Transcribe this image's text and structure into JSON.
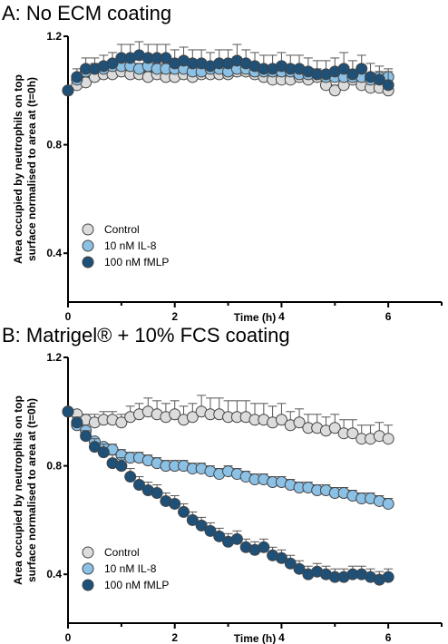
{
  "chart_data": [
    {
      "type": "scatter",
      "panel_title": "A: No ECM coating",
      "xlabel": "Time (h)",
      "ylabel_lines": [
        "Area occupied by neutrophils on top",
        "surface normalised to area at (t=0h)"
      ],
      "xlim": [
        0,
        7
      ],
      "ylim": [
        0.22,
        1.2
      ],
      "xticks": [
        0,
        2,
        4,
        6
      ],
      "yticks": [
        0.4,
        0.8,
        1.2
      ],
      "grid": false,
      "error_bars": true,
      "legend": {
        "placement": "bottom-left"
      },
      "x": [
        0,
        0.167,
        0.333,
        0.5,
        0.667,
        0.833,
        1.0,
        1.167,
        1.333,
        1.5,
        1.667,
        1.833,
        2.0,
        2.167,
        2.333,
        2.5,
        2.667,
        2.833,
        3.0,
        3.167,
        3.333,
        3.5,
        3.667,
        3.833,
        4.0,
        4.167,
        4.333,
        4.5,
        4.667,
        4.833,
        5.0,
        5.167,
        5.333,
        5.5,
        5.667,
        5.833,
        6.0
      ],
      "series": [
        {
          "name": "Control",
          "color": "#dcdcdc",
          "values": [
            1.0,
            1.02,
            1.03,
            1.05,
            1.06,
            1.06,
            1.07,
            1.06,
            1.06,
            1.05,
            1.06,
            1.05,
            1.05,
            1.06,
            1.05,
            1.06,
            1.06,
            1.06,
            1.06,
            1.07,
            1.07,
            1.06,
            1.05,
            1.04,
            1.04,
            1.04,
            1.05,
            1.04,
            1.05,
            1.02,
            1.0,
            1.02,
            1.04,
            1.02,
            1.01,
            1.01,
            1.0
          ],
          "errors": [
            0.0,
            0.015,
            0.02,
            0.02,
            0.02,
            0.02,
            0.02,
            0.02,
            0.02,
            0.02,
            0.02,
            0.02,
            0.02,
            0.02,
            0.02,
            0.02,
            0.02,
            0.02,
            0.02,
            0.02,
            0.02,
            0.02,
            0.02,
            0.02,
            0.02,
            0.02,
            0.02,
            0.02,
            0.02,
            0.02,
            0.02,
            0.02,
            0.02,
            0.02,
            0.02,
            0.02,
            0.02
          ]
        },
        {
          "name": "10 nM IL-8",
          "color": "#8cc1e6",
          "values": [
            1.0,
            1.04,
            1.07,
            1.08,
            1.08,
            1.09,
            1.09,
            1.09,
            1.08,
            1.09,
            1.08,
            1.08,
            1.08,
            1.08,
            1.07,
            1.07,
            1.08,
            1.08,
            1.07,
            1.08,
            1.08,
            1.07,
            1.07,
            1.07,
            1.07,
            1.07,
            1.06,
            1.06,
            1.06,
            1.05,
            1.05,
            1.05,
            1.05,
            1.05,
            1.04,
            1.05,
            1.05
          ],
          "errors": [
            0.0,
            0.02,
            0.02,
            0.02,
            0.02,
            0.02,
            0.02,
            0.02,
            0.02,
            0.02,
            0.02,
            0.02,
            0.02,
            0.02,
            0.02,
            0.02,
            0.02,
            0.02,
            0.02,
            0.02,
            0.02,
            0.02,
            0.02,
            0.02,
            0.02,
            0.02,
            0.02,
            0.02,
            0.02,
            0.02,
            0.02,
            0.02,
            0.02,
            0.02,
            0.02,
            0.02,
            0.03
          ]
        },
        {
          "name": "100 nM fMLP",
          "color": "#1e5078",
          "values": [
            1.0,
            1.05,
            1.08,
            1.08,
            1.09,
            1.1,
            1.12,
            1.12,
            1.13,
            1.12,
            1.12,
            1.12,
            1.1,
            1.11,
            1.1,
            1.1,
            1.09,
            1.1,
            1.1,
            1.11,
            1.1,
            1.09,
            1.08,
            1.08,
            1.09,
            1.08,
            1.08,
            1.07,
            1.06,
            1.06,
            1.07,
            1.08,
            1.06,
            1.08,
            1.05,
            1.04,
            1.02
          ],
          "errors": [
            0.0,
            0.03,
            0.04,
            0.04,
            0.04,
            0.04,
            0.05,
            0.05,
            0.05,
            0.05,
            0.05,
            0.05,
            0.05,
            0.05,
            0.05,
            0.05,
            0.05,
            0.05,
            0.05,
            0.06,
            0.05,
            0.05,
            0.05,
            0.05,
            0.05,
            0.05,
            0.05,
            0.05,
            0.05,
            0.05,
            0.05,
            0.06,
            0.05,
            0.05,
            0.05,
            0.05,
            0.05
          ]
        }
      ]
    },
    {
      "type": "scatter",
      "panel_title": "B: Matrigel® + 10% FCS coating",
      "xlabel": "Time (h)",
      "ylabel_lines": [
        "Area occupied by neutrophils on top",
        "surface normalised to area at (t=0h)"
      ],
      "xlim": [
        0,
        7
      ],
      "ylim": [
        0.22,
        1.2
      ],
      "xticks": [
        0,
        2,
        4,
        6
      ],
      "yticks": [
        0.4,
        0.8,
        1.2
      ],
      "grid": false,
      "error_bars": true,
      "legend": {
        "placement": "bottom-left"
      },
      "x": [
        0,
        0.167,
        0.333,
        0.5,
        0.667,
        0.833,
        1.0,
        1.167,
        1.333,
        1.5,
        1.667,
        1.833,
        2.0,
        2.167,
        2.333,
        2.5,
        2.667,
        2.833,
        3.0,
        3.167,
        3.333,
        3.5,
        3.667,
        3.833,
        4.0,
        4.167,
        4.333,
        4.5,
        4.667,
        4.833,
        5.0,
        5.167,
        5.333,
        5.5,
        5.667,
        5.833,
        6.0
      ],
      "series": [
        {
          "name": "Control",
          "color": "#dcdcdc",
          "values": [
            1.0,
            0.99,
            0.97,
            0.96,
            0.97,
            0.97,
            0.96,
            0.98,
            0.99,
            1.0,
            0.99,
            0.98,
            0.99,
            0.97,
            0.98,
            1.0,
            0.99,
            0.99,
            0.98,
            0.98,
            0.98,
            0.97,
            0.97,
            0.96,
            0.97,
            0.95,
            0.96,
            0.94,
            0.94,
            0.93,
            0.94,
            0.92,
            0.92,
            0.9,
            0.9,
            0.91,
            0.9
          ],
          "errors": [
            0.0,
            0.01,
            0.02,
            0.03,
            0.03,
            0.03,
            0.03,
            0.04,
            0.04,
            0.05,
            0.05,
            0.05,
            0.05,
            0.05,
            0.05,
            0.06,
            0.06,
            0.06,
            0.06,
            0.06,
            0.06,
            0.06,
            0.06,
            0.06,
            0.06,
            0.05,
            0.05,
            0.05,
            0.05,
            0.05,
            0.05,
            0.05,
            0.05,
            0.05,
            0.05,
            0.05,
            0.05
          ]
        },
        {
          "name": "10 nM IL-8",
          "color": "#8cc1e6",
          "values": [
            1.0,
            0.95,
            0.93,
            0.89,
            0.87,
            0.86,
            0.84,
            0.83,
            0.83,
            0.82,
            0.81,
            0.8,
            0.8,
            0.8,
            0.79,
            0.79,
            0.78,
            0.77,
            0.78,
            0.77,
            0.76,
            0.75,
            0.75,
            0.74,
            0.74,
            0.73,
            0.72,
            0.72,
            0.71,
            0.71,
            0.7,
            0.7,
            0.69,
            0.68,
            0.68,
            0.67,
            0.66
          ],
          "errors": [
            0.0,
            0.01,
            0.01,
            0.01,
            0.01,
            0.02,
            0.02,
            0.02,
            0.02,
            0.02,
            0.02,
            0.02,
            0.02,
            0.02,
            0.02,
            0.02,
            0.02,
            0.02,
            0.02,
            0.02,
            0.02,
            0.02,
            0.02,
            0.02,
            0.02,
            0.02,
            0.02,
            0.02,
            0.02,
            0.02,
            0.02,
            0.02,
            0.02,
            0.02,
            0.02,
            0.02,
            0.02
          ]
        },
        {
          "name": "100 nM fMLP",
          "color": "#1e5078",
          "values": [
            1.0,
            0.96,
            0.91,
            0.87,
            0.85,
            0.81,
            0.8,
            0.76,
            0.73,
            0.71,
            0.7,
            0.67,
            0.66,
            0.63,
            0.6,
            0.58,
            0.56,
            0.54,
            0.52,
            0.53,
            0.5,
            0.49,
            0.5,
            0.47,
            0.46,
            0.44,
            0.42,
            0.4,
            0.41,
            0.4,
            0.39,
            0.39,
            0.4,
            0.4,
            0.39,
            0.38,
            0.39
          ],
          "errors": [
            0.0,
            0.02,
            0.02,
            0.03,
            0.03,
            0.03,
            0.03,
            0.03,
            0.03,
            0.03,
            0.03,
            0.03,
            0.03,
            0.03,
            0.03,
            0.03,
            0.03,
            0.03,
            0.03,
            0.03,
            0.03,
            0.03,
            0.03,
            0.03,
            0.03,
            0.03,
            0.03,
            0.03,
            0.03,
            0.03,
            0.03,
            0.03,
            0.03,
            0.03,
            0.03,
            0.03,
            0.03
          ]
        }
      ]
    }
  ]
}
